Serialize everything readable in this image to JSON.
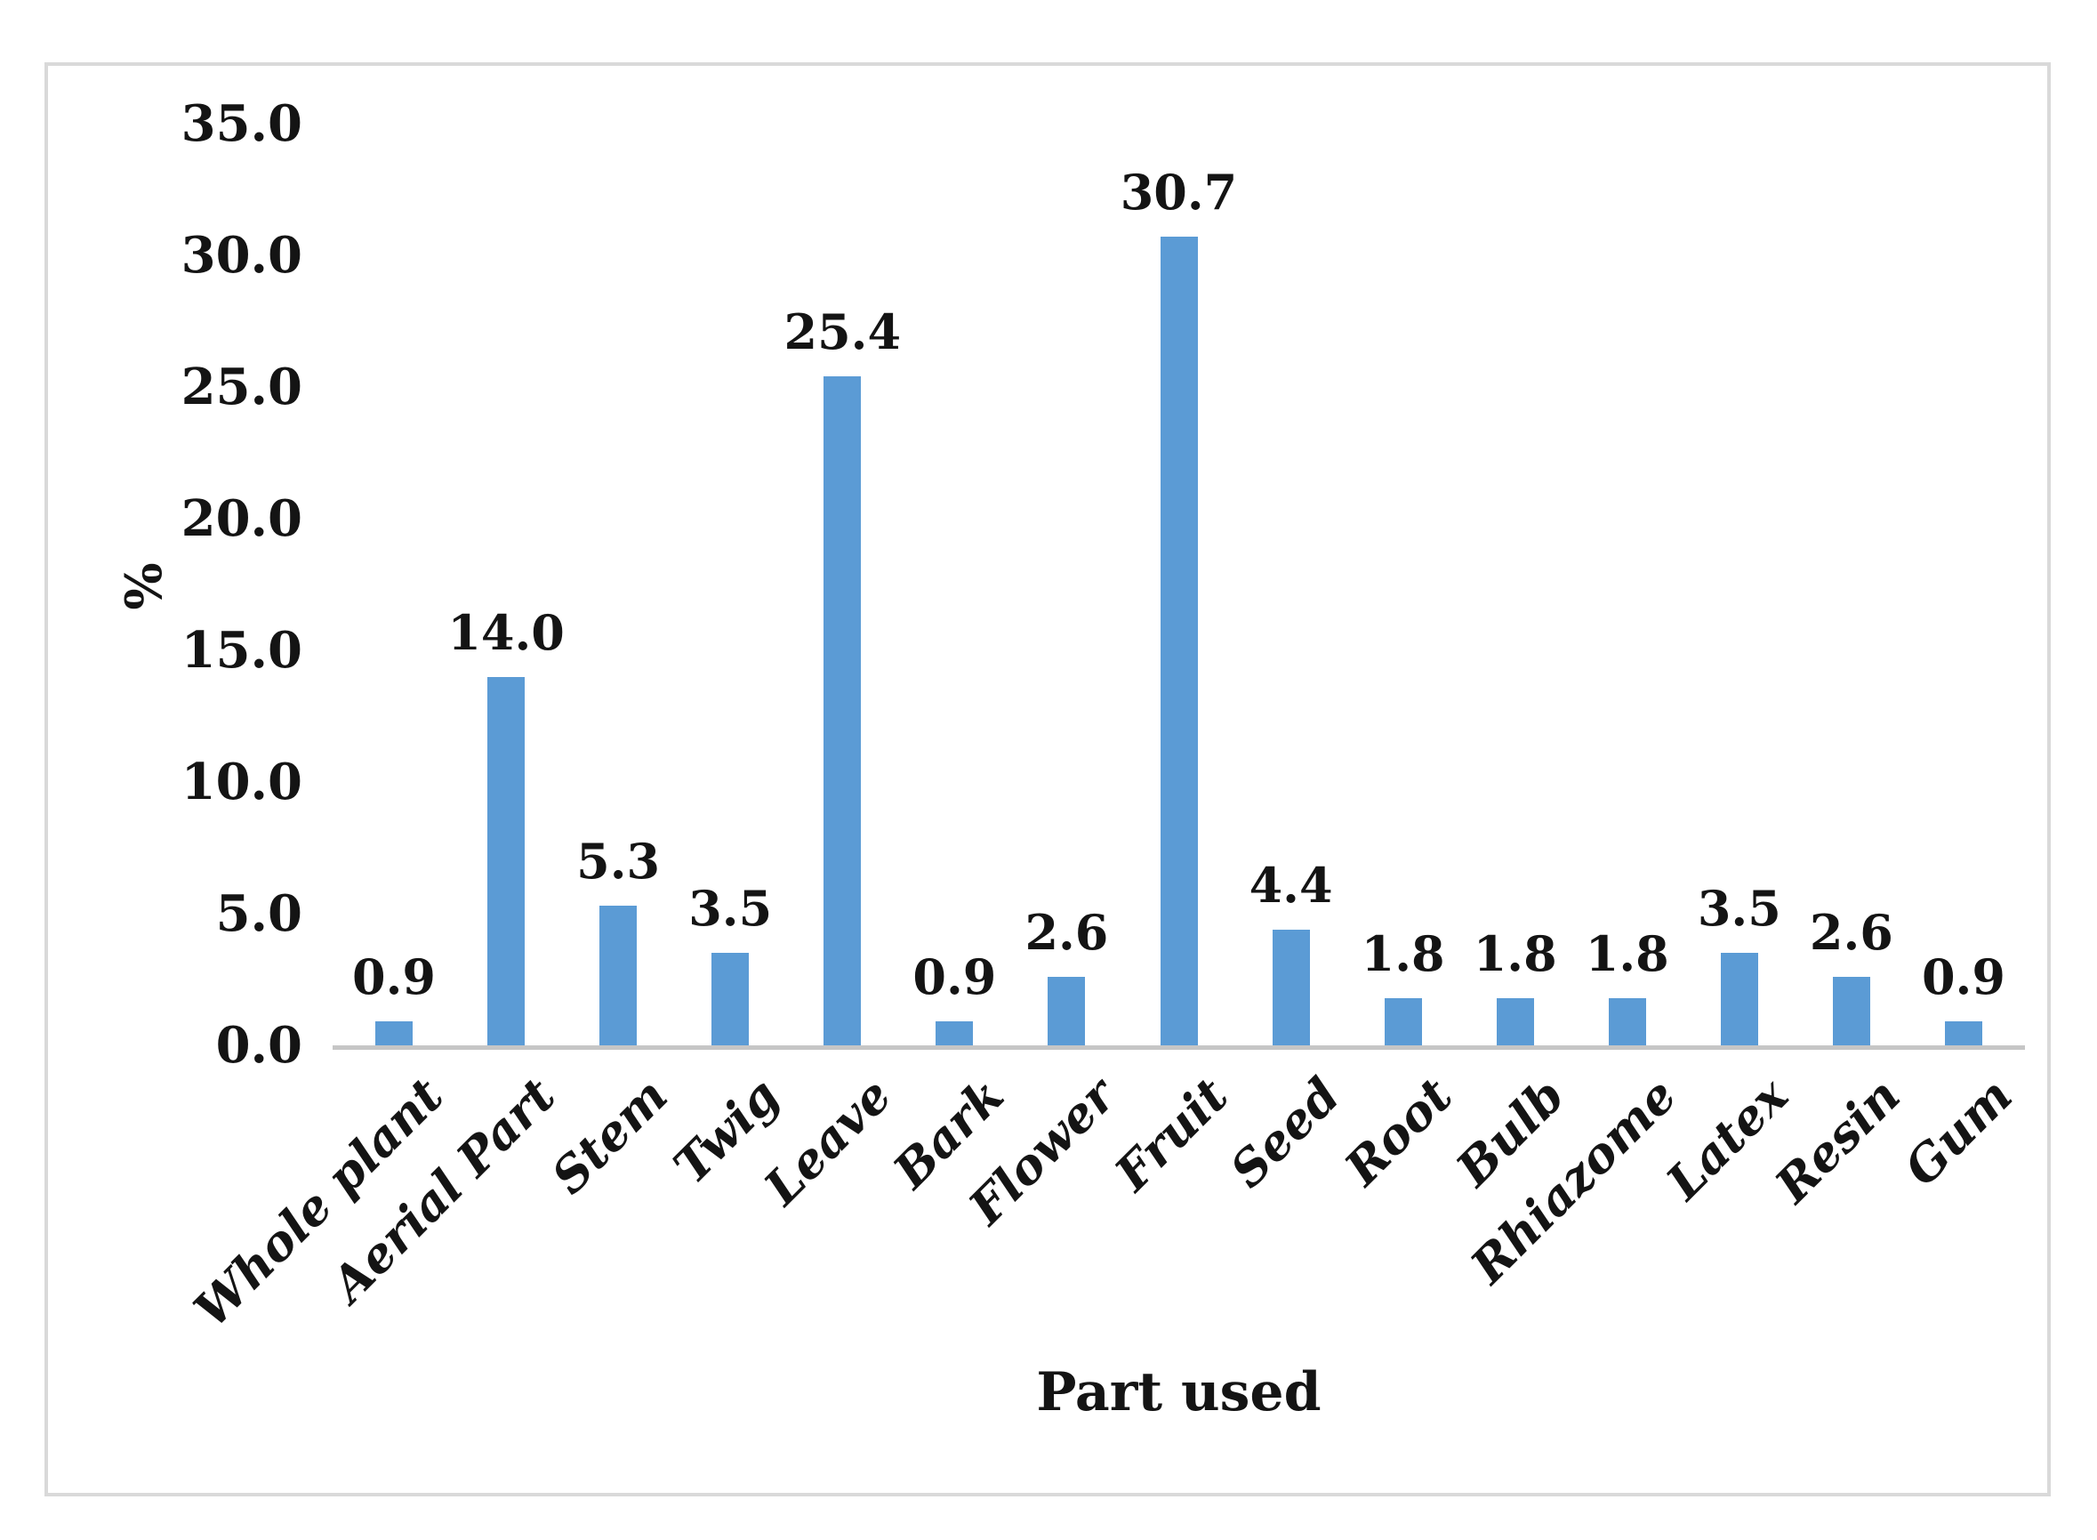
{
  "chart_data": {
    "type": "bar",
    "title": "",
    "xlabel": "Part used",
    "ylabel": "%",
    "categories": [
      "Whole plant",
      "Aerial Part",
      "Stem",
      "Twig",
      "Leave",
      "Bark",
      "Flower",
      "Fruit",
      "Seed",
      "Root",
      "Bulb",
      "Rhiazome",
      "Latex",
      "Resin",
      "Gum"
    ],
    "values": [
      0.9,
      14.0,
      5.3,
      3.5,
      25.4,
      0.9,
      2.6,
      30.7,
      4.4,
      1.8,
      1.8,
      1.8,
      3.5,
      2.6,
      0.9
    ],
    "data_labels": [
      "0.9",
      "14.0",
      "5.3",
      "3.5",
      "25.4",
      "0.9",
      "2.6",
      "30.7",
      "4.4",
      "1.8",
      "1.8",
      "1.8",
      "3.5",
      "2.6",
      "0.9"
    ],
    "ylim": [
      0,
      35
    ],
    "ytick_labels": [
      "35.0",
      "30.0",
      "25.0",
      "20.0",
      "15.0",
      "10.0",
      "5.0",
      "0.0"
    ],
    "grid": false,
    "legend": "none",
    "bar_color": "#5b9bd5",
    "axis_line_color": "#c6c6c6",
    "panel_border_color": "#d9d9d9",
    "text_color": "#141414"
  }
}
